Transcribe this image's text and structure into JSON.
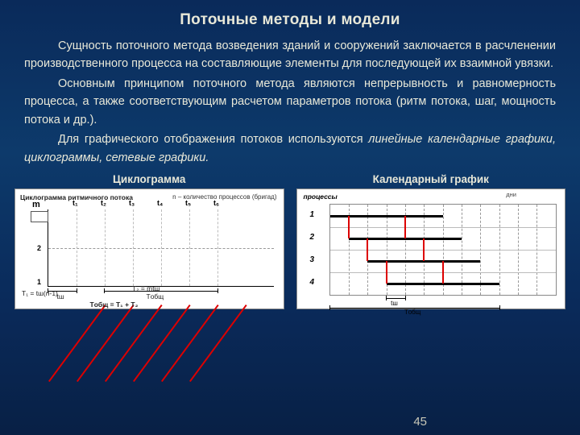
{
  "title": "Поточные методы и модели",
  "paragraphs": [
    "Сущность поточного метода возведения зданий и сооружений заключается в расчленении производственного процесса на составляющие элементы для последующей их взаимной увязки.",
    "Основным принципом поточного метода являются непрерывность и равномерность процесса, а также соответствующим расчетом параметров потока (ритм потока, шаг, мощность потока и др.).",
    "Для графического отображения потоков используются <em>линейные календарные графики, циклограммы, сетевые графики.</em>"
  ],
  "page_number": "45",
  "fig1": {
    "caption": "Циклограмма",
    "title": "Циклограмма ритмичного потока",
    "legend": "n – количество процессов (бригад)",
    "y_label": "m",
    "y_ticks": [
      "1",
      "2"
    ],
    "x_ticks": [
      "t₁",
      "t₂",
      "t₃",
      "t₄",
      "t₅",
      "t₆"
    ],
    "lines_count": 6,
    "line_color": "#d00",
    "notes": {
      "t1": "T₁ = tш(n-1)",
      "t2": "T₂ = mtш",
      "tsh": "tш",
      "tobsh": "Tобщ",
      "tsum": "Tобщ = T₁ + T₂"
    },
    "grid": {
      "h": [
        0.5
      ],
      "xlim": [
        0,
        6
      ]
    }
  },
  "fig2": {
    "caption": "Календарный график",
    "row_label": "процессы",
    "col_label": "дни",
    "processes": [
      "1",
      "2",
      "3",
      "4"
    ],
    "cols": 12,
    "bars": [
      {
        "row": 0,
        "start": 0,
        "len": 3
      },
      {
        "row": 0,
        "start": 3,
        "len": 3
      },
      {
        "row": 1,
        "start": 1,
        "len": 3
      },
      {
        "row": 1,
        "start": 4,
        "len": 3
      },
      {
        "row": 2,
        "start": 2,
        "len": 3
      },
      {
        "row": 2,
        "start": 5,
        "len": 3
      },
      {
        "row": 3,
        "start": 3,
        "len": 3
      },
      {
        "row": 3,
        "start": 6,
        "len": 3
      }
    ],
    "links": [
      {
        "from_row": 0,
        "to_row": 1,
        "x": 1
      },
      {
        "from_row": 1,
        "to_row": 2,
        "x": 2
      },
      {
        "from_row": 2,
        "to_row": 3,
        "x": 3
      },
      {
        "from_row": 0,
        "to_row": 1,
        "x": 4
      },
      {
        "from_row": 1,
        "to_row": 2,
        "x": 5
      },
      {
        "from_row": 2,
        "to_row": 3,
        "x": 6
      }
    ],
    "link_color": "#d00",
    "tsh_label": "tш",
    "tobsh_label": "Tобщ"
  },
  "colors": {
    "bg_top": "#0a2a5a",
    "text": "#e8e8d8",
    "accent": "#d00"
  }
}
